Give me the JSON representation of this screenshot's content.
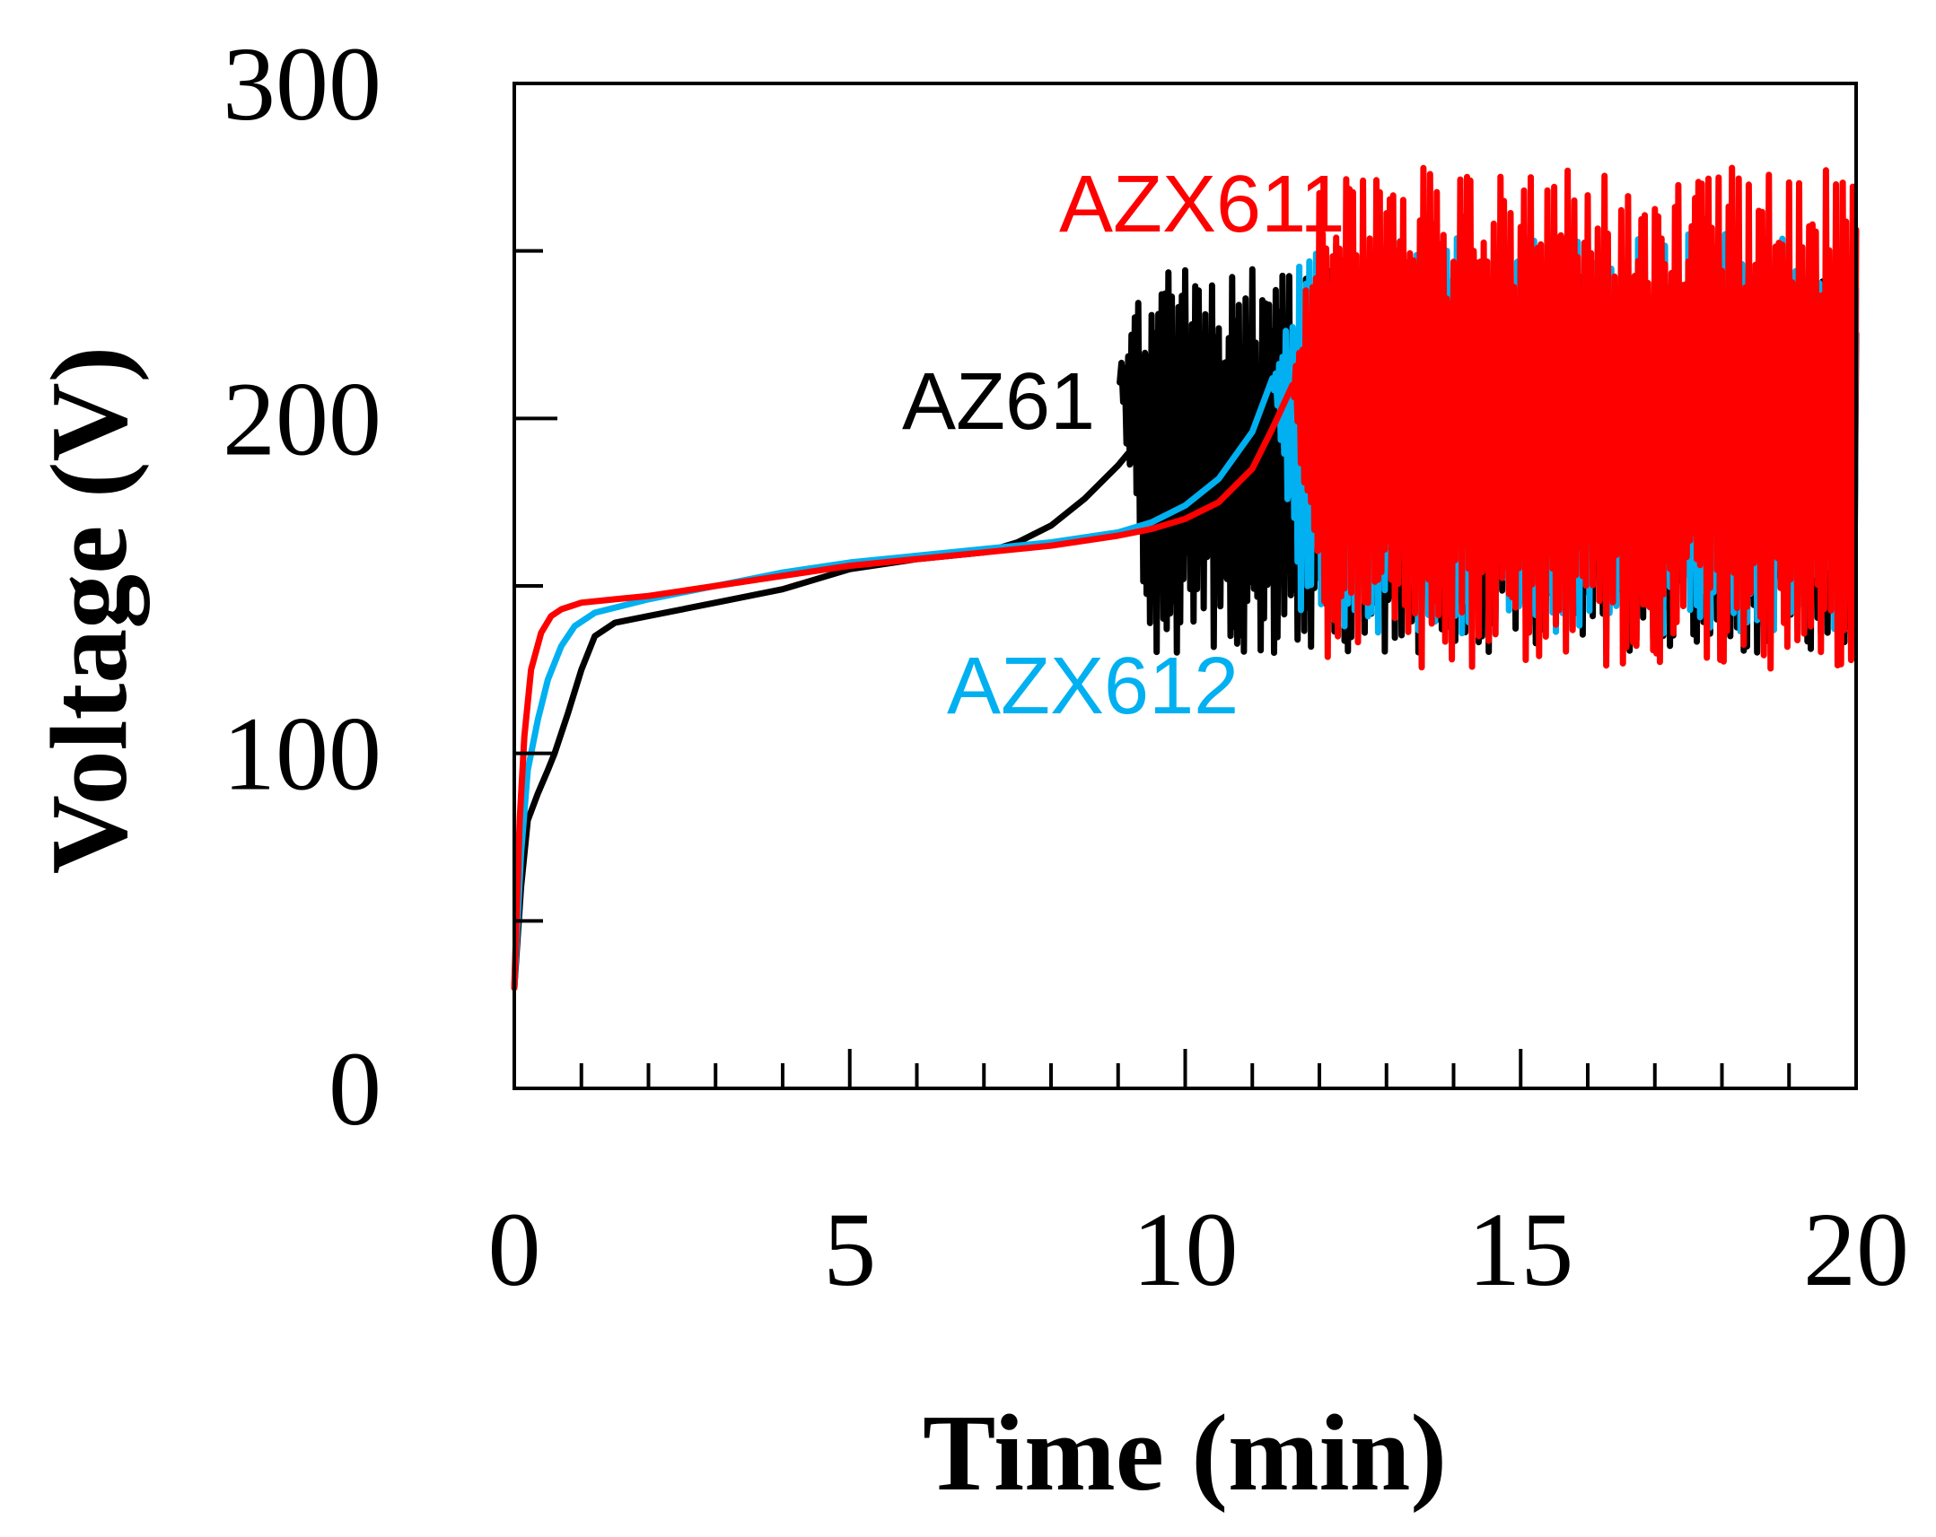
{
  "chart_data": {
    "type": "line",
    "title": "",
    "xlabel": "Time (min)",
    "ylabel": "Voltage (V)",
    "xlim": [
      0,
      20
    ],
    "ylim": [
      0,
      300
    ],
    "x_tick_labels": [
      "0",
      "5",
      "10",
      "15",
      "20"
    ],
    "y_tick_labels": [
      "0",
      "100",
      "200",
      "300"
    ],
    "x_major_ticks": [
      0,
      5,
      10,
      15,
      20
    ],
    "x_minor_ticks": [
      1,
      2,
      3,
      4,
      6,
      7,
      8,
      9,
      11,
      12,
      13,
      14,
      16,
      17,
      18,
      19
    ],
    "y_minor_ticks": [
      50,
      150,
      250
    ],
    "grid": false,
    "series": [
      {
        "name": "AZ61",
        "label": "AZ61",
        "color": "#000000",
        "x": [
          0,
          0.1,
          0.2,
          0.35,
          0.5,
          0.6,
          0.8,
          1.0,
          1.2,
          1.5,
          2.0,
          3.0,
          4.0,
          5.0,
          6.0,
          7.0,
          7.5,
          8.0,
          8.5,
          9.0,
          9.5,
          10.0,
          10.5,
          11.0
        ],
        "values": [
          30,
          60,
          80,
          88,
          95,
          100,
          112,
          125,
          135,
          139,
          141,
          145,
          149,
          155,
          158,
          160,
          163,
          168,
          176,
          186,
          198,
          206,
          212,
          215
        ],
        "noise_start": 9.0,
        "noise_end": 20,
        "noise_low": 130,
        "noise_high": 245
      },
      {
        "name": "AZX612",
        "label": "AZX612",
        "color": "#00b0f0",
        "x": [
          0,
          0.1,
          0.2,
          0.35,
          0.5,
          0.7,
          0.9,
          1.2,
          1.6,
          2.0,
          3.0,
          4.0,
          5.0,
          6.0,
          7.0,
          8.0,
          9.0,
          9.5,
          10.0,
          10.5,
          11.0,
          11.3
        ],
        "values": [
          30,
          70,
          95,
          110,
          122,
          132,
          138,
          142,
          144,
          146,
          150,
          154,
          157,
          159,
          161,
          163,
          166,
          169,
          174,
          182,
          196,
          212
        ],
        "noise_start": 11.3,
        "noise_end": 20,
        "noise_low": 135,
        "noise_high": 255
      },
      {
        "name": "AZX611",
        "label": "AZX611",
        "color": "#ff0000",
        "x": [
          0,
          0.08,
          0.15,
          0.25,
          0.4,
          0.55,
          0.7,
          1.0,
          1.5,
          2.0,
          3.0,
          4.0,
          5.0,
          6.0,
          7.0,
          8.0,
          9.0,
          9.5,
          10.0,
          10.5,
          11.0,
          11.3,
          11.6
        ],
        "values": [
          30,
          80,
          105,
          125,
          136,
          141,
          143,
          145,
          146,
          147,
          150,
          153,
          156,
          158,
          160,
          162,
          165,
          167,
          170,
          175,
          185,
          197,
          210
        ],
        "noise_start": 11.6,
        "noise_end": 20,
        "noise_low": 125,
        "noise_high": 275
      }
    ]
  }
}
